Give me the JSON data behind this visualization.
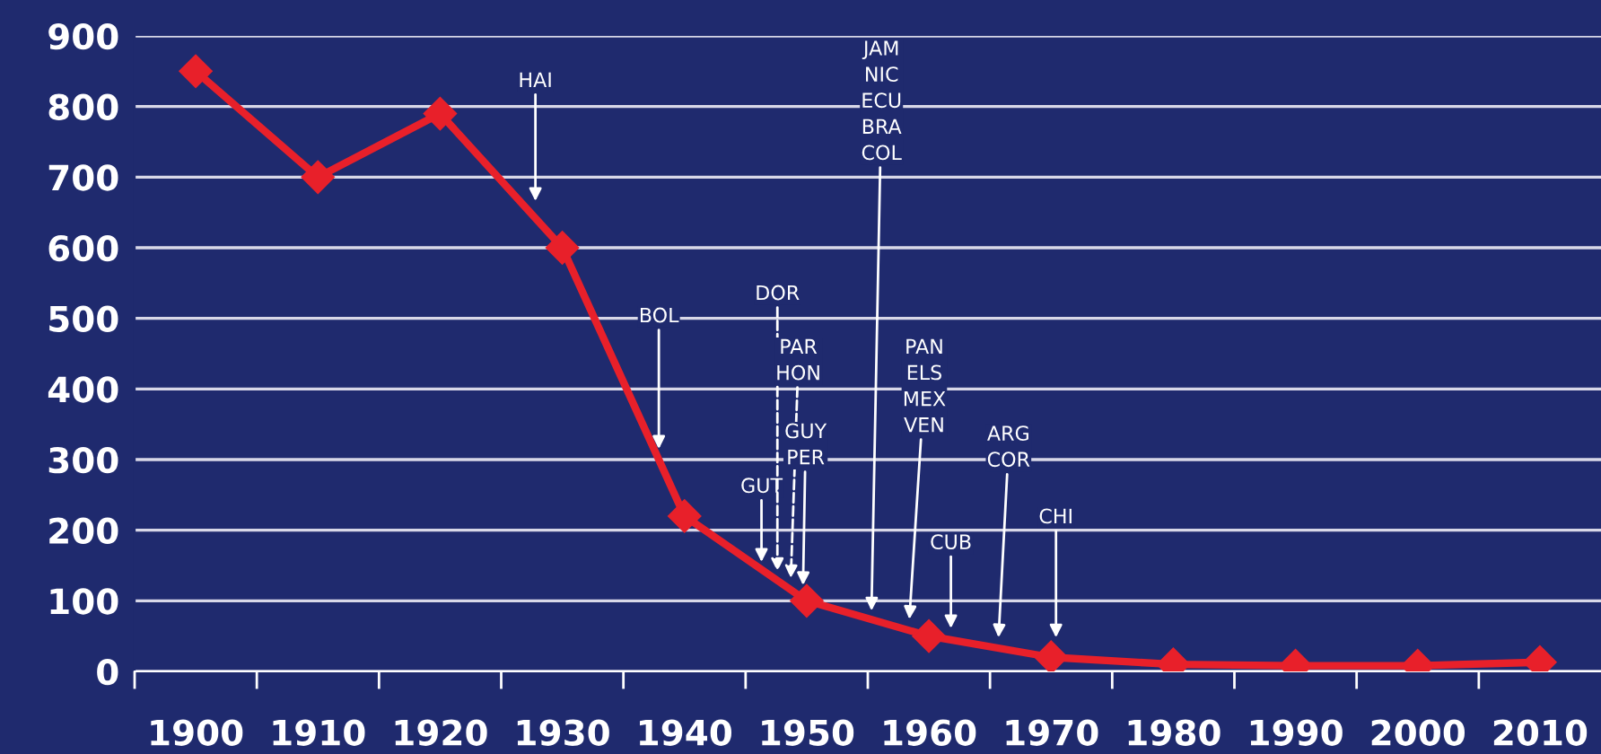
{
  "chart_data": {
    "type": "line",
    "x": [
      1900,
      1910,
      1920,
      1930,
      1940,
      1950,
      1960,
      1970,
      1980,
      1990,
      2000,
      2010
    ],
    "series": [
      {
        "color": "#e8202a",
        "values": [
          850,
          700,
          790,
          600,
          220,
          100,
          50,
          20,
          10,
          8,
          8,
          13
        ]
      }
    ],
    "marker": "diamond",
    "line_style": "solid",
    "grid": "y",
    "xlim": [
      1895,
      2015
    ],
    "ylim": [
      0,
      900
    ],
    "xticks": [
      1900,
      1910,
      1920,
      1930,
      1940,
      1950,
      1960,
      1970,
      1980,
      1990,
      2000,
      2010,
      {
        "value": 1895,
        "label": null
      },
      {
        "value": 1905,
        "label": null
      },
      {
        "value": 1915,
        "label": null
      },
      {
        "value": 1925,
        "label": null
      },
      {
        "value": 1935,
        "label": null
      },
      {
        "value": 1945,
        "label": null
      },
      {
        "value": 1955,
        "label": null
      },
      {
        "value": 1965,
        "label": null
      },
      {
        "value": 1975,
        "label": null
      },
      {
        "value": 1985,
        "label": null
      },
      {
        "value": 1995,
        "label": null
      },
      {
        "value": 2005,
        "label": null
      }
    ],
    "yticks": [
      0,
      100,
      200,
      300,
      400,
      500,
      600,
      700,
      800,
      900
    ],
    "annotations": [
      {
        "text": "HAI",
        "x": 1927.8,
        "y": 666
      },
      {
        "text": "BOL",
        "x": 1937.9,
        "y": 315
      },
      {
        "text": "GUT",
        "x": 1946.3,
        "y": 155
      },
      {
        "text": "DOR",
        "x": 1947.6,
        "y": 142
      },
      {
        "text": "PAR\nHON",
        "x": 1948.7,
        "y": 132
      },
      {
        "text": "GUY\nPER",
        "x": 1949.7,
        "y": 122
      },
      {
        "text": "JAM\nNIC\nECU\nBRA\nCOL",
        "x": 1955.3,
        "y": 86
      },
      {
        "text": "PAN\nELS\nMEX\nVEN",
        "x": 1958.4,
        "y": 74
      },
      {
        "text": "CUB",
        "x": 1961.8,
        "y": 61
      },
      {
        "text": "ARG\nCOR",
        "x": 1965.7,
        "y": 48
      },
      {
        "text": "CHI",
        "x": 1970.4,
        "y": 48
      }
    ]
  }
}
